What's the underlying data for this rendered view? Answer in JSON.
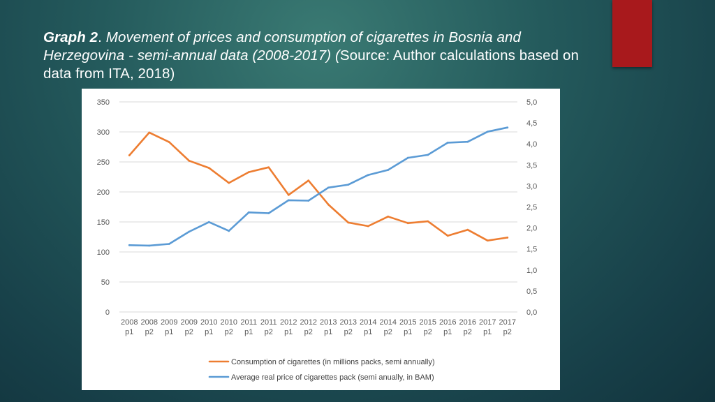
{
  "slide": {
    "title_lead": "Graph 2",
    "title_sep": ". ",
    "title_italic": "Movement of prices and consumption of cigarettes in Bosnia and Herzegovina - semi-annual data (2008-2017) (",
    "title_plain": "Source: Author calculations based on data from ITA, 2018)",
    "accent_color": "#a8191c"
  },
  "chart_data": {
    "type": "line",
    "title": "",
    "categories": [
      [
        "2008",
        "p1"
      ],
      [
        "2008",
        "p2"
      ],
      [
        "2009",
        "p1"
      ],
      [
        "2009",
        "p2"
      ],
      [
        "2010",
        "p1"
      ],
      [
        "2010",
        "p2"
      ],
      [
        "2011",
        "p1"
      ],
      [
        "2011",
        "p2"
      ],
      [
        "2012",
        "p1"
      ],
      [
        "2012",
        "p2"
      ],
      [
        "2013",
        "p1"
      ],
      [
        "2013",
        "p2"
      ],
      [
        "2014",
        "p1"
      ],
      [
        "2014",
        "p2"
      ],
      [
        "2015",
        "p1"
      ],
      [
        "2015",
        "p2"
      ],
      [
        "2016",
        "p1"
      ],
      [
        "2016",
        "p2"
      ],
      [
        "2017",
        "p1"
      ],
      [
        "2017",
        "p2"
      ]
    ],
    "left_axis": {
      "min": 0,
      "max": 350,
      "step": 50,
      "ticks": [
        "0",
        "50",
        "100",
        "150",
        "200",
        "250",
        "300",
        "350"
      ]
    },
    "right_axis": {
      "min": 0,
      "max": 5,
      "step": 0.5,
      "ticks": [
        "0,0",
        "0,5",
        "1,0",
        "1,5",
        "2,0",
        "2,5",
        "3,0",
        "3,5",
        "4,0",
        "4,5",
        "5,0"
      ]
    },
    "grid": true,
    "legend_position": "bottom",
    "series": [
      {
        "name": "Consumption of cigarettes (in millions packs, semi annually)",
        "axis": "left",
        "color": "#ed7d31",
        "values": [
          261,
          299,
          283,
          252,
          240,
          215,
          233,
          241,
          195,
          219,
          179,
          149,
          143,
          159,
          148,
          151,
          127,
          137,
          119,
          124
        ]
      },
      {
        "name": "Average real price of cigarettes pack (semi anually, in BAM)",
        "axis": "right",
        "color": "#5b9bd5",
        "values": [
          1.59,
          1.58,
          1.62,
          1.91,
          2.14,
          1.93,
          2.37,
          2.35,
          2.66,
          2.65,
          2.96,
          3.03,
          3.26,
          3.38,
          3.67,
          3.74,
          4.03,
          4.05,
          4.29,
          4.39
        ]
      }
    ]
  }
}
